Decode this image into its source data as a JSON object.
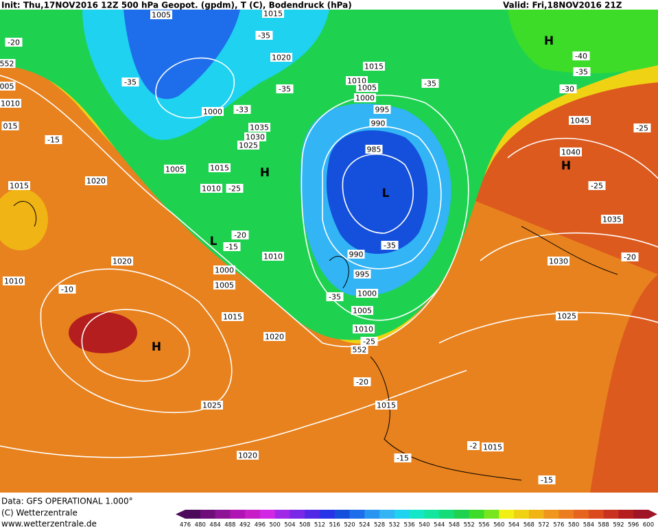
{
  "header": {
    "init": "Init: Thu,17NOV2016 12Z  500 hPa Geopot. (gpdm), T (C), Bodendruck (hPa)",
    "valid": "Valid: Fri,18NOV2016 21Z"
  },
  "footer": {
    "data": "Data: GFS OPERATIONAL 1.000°",
    "copyright": "(C) Wetterzentrale",
    "url": "www.wetterzentrale.de"
  },
  "colorbar": {
    "values": [
      476,
      480,
      484,
      488,
      492,
      496,
      500,
      504,
      508,
      512,
      516,
      520,
      524,
      528,
      532,
      536,
      540,
      544,
      548,
      552,
      556,
      560,
      564,
      568,
      572,
      576,
      580,
      584,
      588,
      592,
      596,
      600
    ],
    "colors": [
      "#4b0a5a",
      "#6e0e78",
      "#8e1496",
      "#b014b4",
      "#c81ec8",
      "#d228e6",
      "#a028e6",
      "#7828e6",
      "#5028e6",
      "#2832e6",
      "#1450dc",
      "#1e6eeb",
      "#2896f0",
      "#32b4f5",
      "#1ed2f0",
      "#14e6c8",
      "#14e6a0",
      "#14dc78",
      "#1ed250",
      "#3cdc28",
      "#78e61e",
      "#f0f014",
      "#f0d214",
      "#f0b414",
      "#f0961e",
      "#eb7d1e",
      "#e6641e",
      "#dc4b1e",
      "#c8321e",
      "#b41e1e",
      "#a01428"
    ]
  },
  "map_labels": [
    "1005",
    "1015",
    "-35",
    "1020",
    "-35",
    "-35",
    "1000",
    "-33",
    "1035",
    "1030",
    "1025",
    "1005",
    "1015",
    "1010",
    "-25",
    "1020",
    "1015",
    "-15",
    "-20",
    "552",
    "005",
    "1010",
    "015",
    "1010",
    "1020",
    "-10",
    "1000",
    "1005",
    "1010",
    "-20",
    "-15",
    "1015",
    "1020",
    "1025",
    "1020",
    "1015",
    "1010",
    "1005",
    "1000",
    "995",
    "990",
    "985",
    "990",
    "995",
    "1000",
    "1005",
    "1010",
    "-25",
    "-35",
    "-35",
    "-35",
    "-20",
    "1015",
    "-15",
    "-2",
    "1015",
    "-15",
    "1025",
    "1030",
    "1035",
    "1040",
    "1045",
    "-25",
    "-25",
    "-20",
    "-40",
    "-35",
    "-30",
    "552"
  ],
  "markers": [
    "H",
    "H",
    "H",
    "H",
    "L",
    "L"
  ]
}
